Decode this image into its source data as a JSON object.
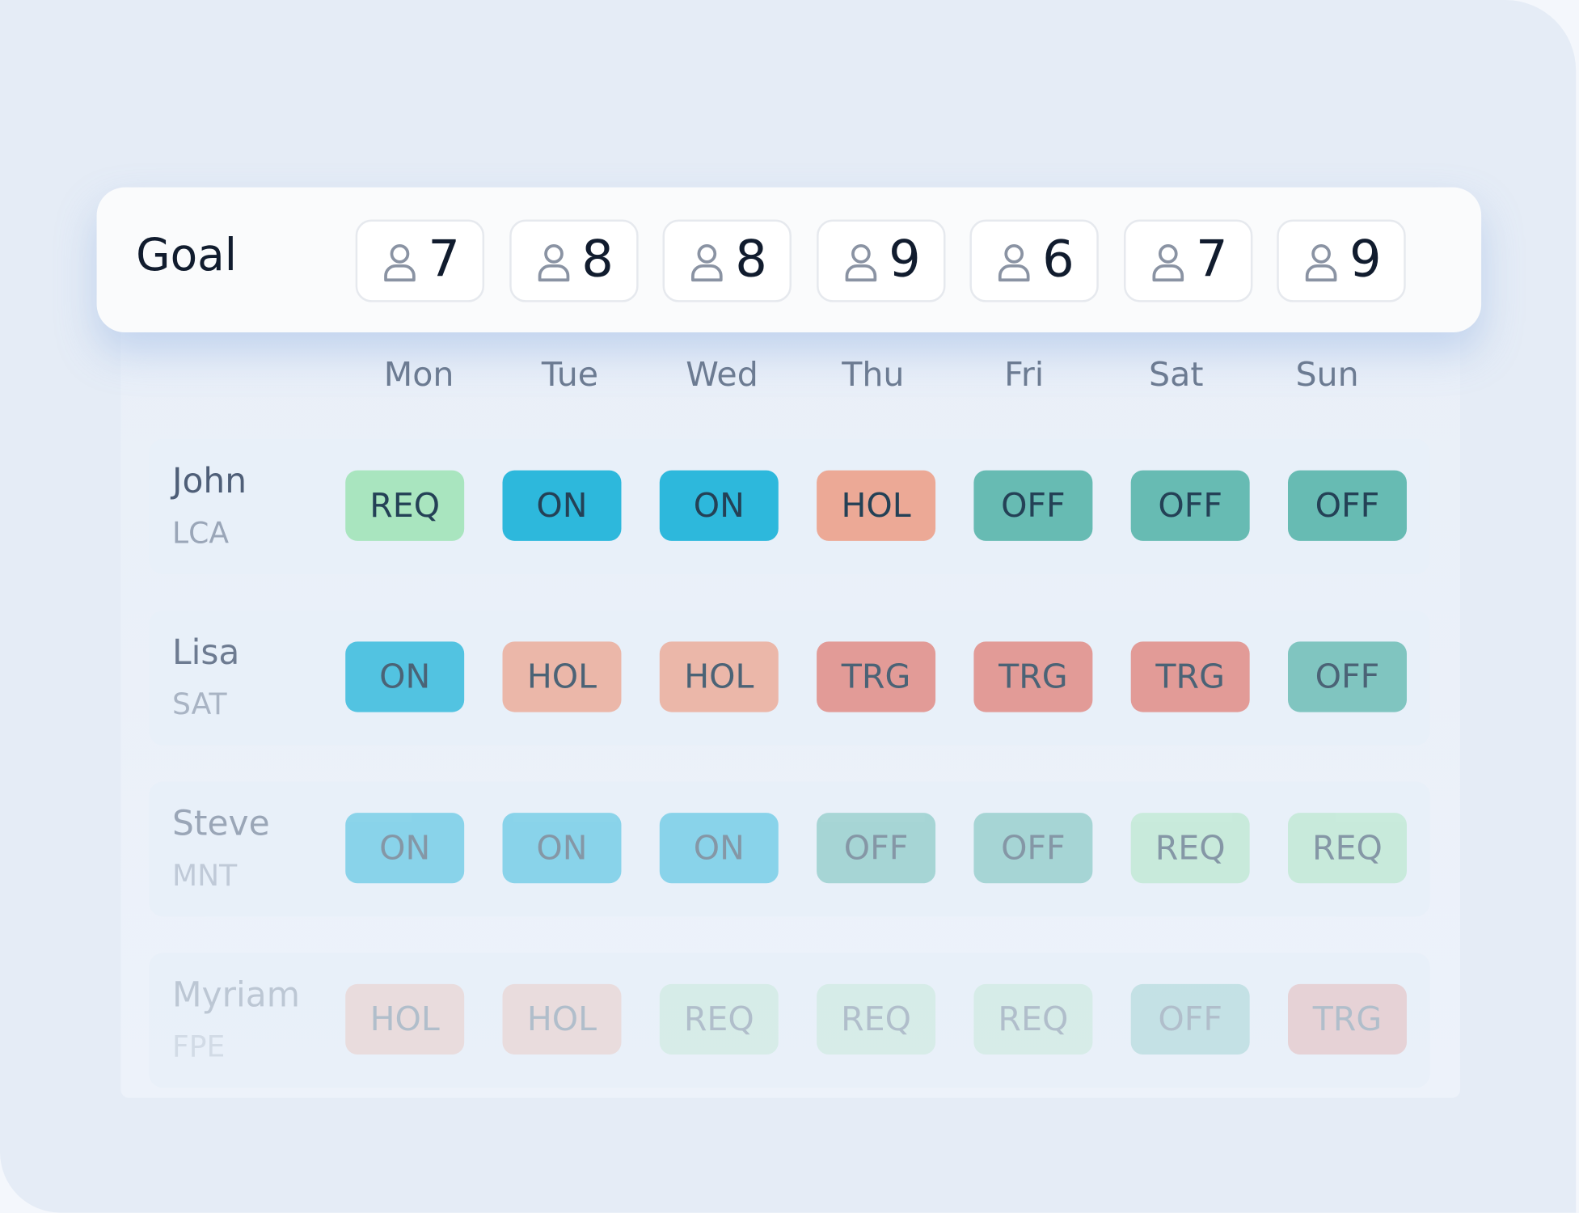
{
  "goal": {
    "label": "Goal",
    "counts": [
      "7",
      "8",
      "8",
      "9",
      "6",
      "7",
      "9"
    ]
  },
  "days": [
    "Mon",
    "Tue",
    "Wed",
    "Thu",
    "Fri",
    "Sat",
    "Sun"
  ],
  "rows": [
    {
      "name": "John",
      "code": "LCA",
      "shifts": [
        "REQ",
        "ON",
        "ON",
        "HOL",
        "OFF",
        "OFF",
        "OFF"
      ]
    },
    {
      "name": "Lisa",
      "code": "SAT",
      "shifts": [
        "ON",
        "HOL",
        "HOL",
        "TRG",
        "TRG",
        "TRG",
        "OFF"
      ]
    },
    {
      "name": "Steve",
      "code": "MNT",
      "shifts": [
        "ON",
        "ON",
        "ON",
        "OFF",
        "OFF",
        "REQ",
        "REQ"
      ]
    },
    {
      "name": "Myriam",
      "code": "FPE",
      "shifts": [
        "HOL",
        "HOL",
        "REQ",
        "REQ",
        "REQ",
        "OFF",
        "TRG"
      ]
    }
  ],
  "status_colors": {
    "REQ": "#a9e5bf",
    "ON": "#2db8dc",
    "HOL": "#eca996",
    "OFF": "#67bbb3",
    "TRG": "#e1867f"
  }
}
